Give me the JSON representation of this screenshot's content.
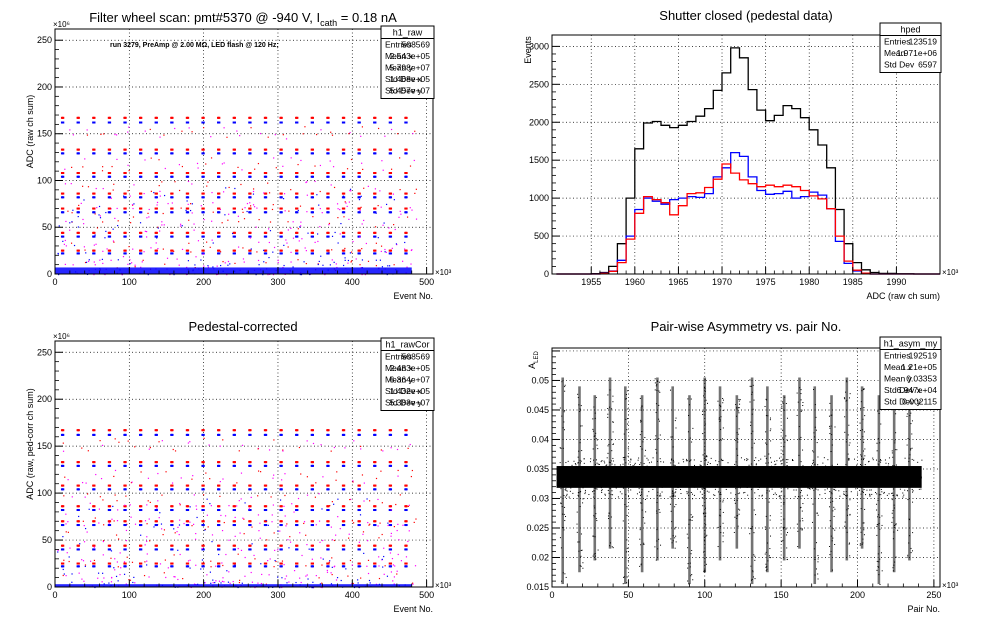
{
  "chart_data": [
    {
      "type": "scatter",
      "title_prefix": "Filter wheel scan: pmt#5370 @  -940 V, I",
      "title_sub": "cath",
      "title_suffix": " = 0.18 nA",
      "annotation": "run 3279, PreAmp @ 2.00 MΩ, LED flash @  120 Hz;",
      "xlabel": "Event No.",
      "ylabel": "ADC (raw ch sum)",
      "x_exponent": "×10³",
      "y_exponent": "×10⁶",
      "xlim": [
        0,
        508.6
      ],
      "ylim": [
        0,
        262
      ],
      "xticks": [
        0,
        100,
        200,
        300,
        400,
        500
      ],
      "yticks": [
        0,
        50,
        100,
        150,
        200,
        250
      ],
      "grid": true,
      "stats": {
        "name": "h1_raw",
        "rows": [
          [
            "Entries",
            "508569"
          ],
          [
            "Mean x",
            "2.543e+05"
          ],
          [
            "Mean y",
            "5.798e+07"
          ],
          [
            "Std Dev x",
            "1.468e+05"
          ],
          [
            "Std Dev y",
            "5.457e+07"
          ]
        ]
      },
      "colors": {
        "red": "#ff0000",
        "blue": "#0000ff",
        "magenta": "#ff00ff"
      },
      "levels": {
        "red": [
          167,
          133,
          108,
          86,
          70,
          44,
          25
        ],
        "blue": [
          162,
          129,
          104,
          82,
          66,
          40,
          22
        ]
      },
      "series_x": [
        8,
        29,
        50,
        71,
        92,
        113,
        134,
        155,
        176,
        197,
        218,
        239,
        260,
        281,
        302,
        323,
        344,
        365,
        386,
        407,
        428,
        449,
        470
      ],
      "bottom_band_max": 7
    },
    {
      "type": "line",
      "title": "Shutter closed (pedestal data)",
      "xlabel": "ADC (raw ch sum)",
      "ylabel": "Events",
      "x_exponent": "×10³",
      "xlim": [
        1950.5,
        1995
      ],
      "ylim": [
        0,
        3150
      ],
      "xticks": [
        1955,
        1960,
        1965,
        1970,
        1975,
        1980,
        1985,
        1990
      ],
      "yticks": [
        0,
        500,
        1000,
        1500,
        2000,
        2500,
        3000
      ],
      "grid": true,
      "stats": {
        "name": "hped",
        "rows": [
          [
            "Entries",
            "123519"
          ],
          [
            "Mean",
            "1.971e+06"
          ],
          [
            "Std Dev",
            "6597"
          ]
        ]
      },
      "x": [
        1951,
        1953,
        1955,
        1956,
        1957,
        1958,
        1959,
        1960,
        1961,
        1962,
        1963,
        1964,
        1965,
        1966,
        1967,
        1968,
        1969,
        1970,
        1971,
        1972,
        1973,
        1974,
        1975,
        1976,
        1977,
        1978,
        1979,
        1980,
        1981,
        1982,
        1983,
        1984,
        1985,
        1986,
        1987,
        1988,
        1990,
        1992,
        1994
      ],
      "series": [
        {
          "color": "#000000",
          "values": [
            0,
            0,
            5,
            20,
            100,
            400,
            1000,
            1650,
            1990,
            2010,
            1960,
            1930,
            1960,
            2010,
            2080,
            2180,
            2420,
            2650,
            2980,
            2850,
            2430,
            2160,
            2020,
            2090,
            2220,
            2180,
            2060,
            1900,
            1700,
            1400,
            850,
            400,
            150,
            55,
            20,
            8,
            3,
            0,
            0
          ]
        },
        {
          "color": "#0000ff",
          "values": [
            0,
            0,
            0,
            10,
            40,
            180,
            500,
            850,
            1000,
            960,
            920,
            980,
            1000,
            1020,
            1010,
            1060,
            1280,
            1400,
            1600,
            1550,
            1280,
            1100,
            1050,
            1060,
            1090,
            1000,
            1020,
            1080,
            1040,
            860,
            430,
            140,
            40,
            10,
            0,
            0,
            0,
            0,
            0
          ]
        },
        {
          "color": "#ff0000",
          "values": [
            0,
            0,
            0,
            8,
            35,
            150,
            460,
            800,
            1020,
            980,
            940,
            780,
            900,
            1060,
            1070,
            1140,
            1250,
            1450,
            1330,
            1240,
            1190,
            1150,
            1170,
            1150,
            1170,
            1150,
            1100,
            1030,
            990,
            860,
            500,
            170,
            50,
            12,
            0,
            0,
            0,
            0,
            0
          ]
        }
      ]
    },
    {
      "type": "scatter",
      "title": "Pedestal-corrected",
      "xlabel": "Event No.",
      "ylabel": "ADC (raw, ped-corr ch sum)",
      "x_exponent": "×10³",
      "y_exponent": "×10⁶",
      "xlim": [
        0,
        508.6
      ],
      "ylim": [
        0,
        262
      ],
      "xticks": [
        0,
        100,
        200,
        300,
        400,
        500
      ],
      "yticks": [
        0,
        50,
        100,
        150,
        200,
        250
      ],
      "grid": true,
      "stats": {
        "name": "h1_rawCor",
        "rows": [
          [
            "Entries",
            "508569"
          ],
          [
            "Mean x",
            "2.483e+05"
          ],
          [
            "Mean y",
            "6.364e+07"
          ],
          [
            "Std Dev x",
            "1.432e+05"
          ],
          [
            "Std Dev y",
            "5.383e+07"
          ]
        ]
      },
      "colors": {
        "red": "#ff0000",
        "blue": "#0000ff",
        "magenta": "#ff00ff"
      },
      "levels": {
        "red": [
          167,
          133,
          108,
          86,
          70,
          44,
          25
        ],
        "blue": [
          162,
          129,
          104,
          82,
          66,
          40,
          22
        ]
      },
      "series_x": [
        8,
        29,
        50,
        71,
        92,
        113,
        134,
        155,
        176,
        197,
        218,
        239,
        260,
        281,
        302,
        323,
        344,
        365,
        386,
        407,
        428,
        449,
        470
      ],
      "bottom_band_max": 3
    },
    {
      "type": "scatter",
      "title": "Pair-wise Asymmetry vs. pair No.",
      "xlabel": "Pair No.",
      "ylabel_main": "A",
      "ylabel_sub": "LED",
      "x_exponent": "×10³",
      "xlim": [
        0,
        254
      ],
      "ylim": [
        0.015,
        0.0555
      ],
      "xticks": [
        0,
        50,
        100,
        150,
        200,
        250
      ],
      "yticks": [
        0.015,
        0.02,
        0.025,
        0.03,
        0.035,
        0.04,
        0.045,
        0.05,
        0.055
      ],
      "ytick_labels": [
        "0.015",
        "0.02",
        "0.025",
        "0.03",
        "0.035",
        "0.04",
        "0.045",
        "0.05",
        ""
      ],
      "grid": true,
      "stats": {
        "name": "h1_asym_my",
        "rows": [
          [
            "Entries",
            "192519"
          ],
          [
            "Mean x",
            "1.21e+05"
          ],
          [
            "Mean y",
            "0.03353"
          ],
          [
            "Std Dev x",
            "6.947e+04"
          ],
          [
            "Std Dev y",
            "0.002115"
          ]
        ]
      },
      "band": {
        "x_min": 3,
        "x_max": 242,
        "y_min": 0.0318,
        "y_max": 0.0355
      },
      "spikes_x": [
        7,
        18,
        28,
        38,
        48,
        59,
        69,
        79,
        90,
        100,
        110,
        121,
        131,
        141,
        152,
        162,
        172,
        183,
        193,
        203,
        214,
        224,
        234
      ]
    }
  ]
}
